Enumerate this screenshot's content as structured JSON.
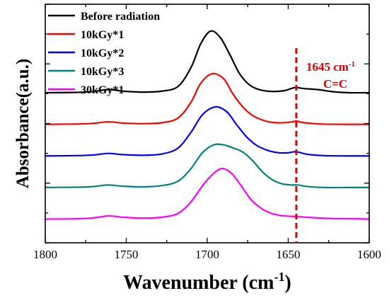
{
  "chart_data": {
    "type": "line",
    "xlabel": "Wavenumber (cm",
    "xlabel_sup": "-1",
    "xlabel_tail": ")",
    "ylabel": "Absorbance(a.u.)",
    "xlim": [
      1800,
      1600
    ],
    "x_reversed": true,
    "x_ticks": [
      1800,
      1750,
      1700,
      1650,
      1600
    ],
    "x_tick_labels": [
      "1800",
      "1750",
      "1700",
      "1650",
      "1600"
    ],
    "y_tick_labels_shown": false,
    "y_units": "a.u.",
    "grid": false,
    "legend_placement": "top-left",
    "series": [
      {
        "name": "Before radiation",
        "color": "#000000",
        "baseline": 4.0,
        "points": [
          [
            1800,
            4.0
          ],
          [
            1780,
            4.01
          ],
          [
            1770,
            4.04
          ],
          [
            1761,
            4.1
          ],
          [
            1752,
            4.05
          ],
          [
            1740,
            4.02
          ],
          [
            1728,
            4.05
          ],
          [
            1718,
            4.2
          ],
          [
            1710,
            4.8
          ],
          [
            1704,
            5.55
          ],
          [
            1698,
            5.95
          ],
          [
            1692,
            5.75
          ],
          [
            1686,
            5.2
          ],
          [
            1680,
            4.6
          ],
          [
            1674,
            4.25
          ],
          [
            1668,
            4.1
          ],
          [
            1660,
            4.04
          ],
          [
            1652,
            4.07
          ],
          [
            1646,
            4.16
          ],
          [
            1640,
            4.13
          ],
          [
            1632,
            4.1
          ],
          [
            1622,
            4.03
          ],
          [
            1612,
            4.0
          ],
          [
            1600,
            4.0
          ]
        ]
      },
      {
        "name": "10kGy*1",
        "color": "#ff0000",
        "baseline": 3.0,
        "points": [
          [
            1800,
            3.0
          ],
          [
            1780,
            3.01
          ],
          [
            1770,
            3.03
          ],
          [
            1761,
            3.08
          ],
          [
            1752,
            3.04
          ],
          [
            1740,
            3.02
          ],
          [
            1728,
            3.05
          ],
          [
            1718,
            3.2
          ],
          [
            1710,
            3.7
          ],
          [
            1704,
            4.3
          ],
          [
            1697,
            4.6
          ],
          [
            1690,
            4.45
          ],
          [
            1684,
            3.95
          ],
          [
            1678,
            3.55
          ],
          [
            1672,
            3.28
          ],
          [
            1665,
            3.12
          ],
          [
            1658,
            3.05
          ],
          [
            1650,
            3.06
          ],
          [
            1645,
            3.1
          ],
          [
            1640,
            3.05
          ],
          [
            1630,
            3.01
          ],
          [
            1615,
            3.0
          ],
          [
            1600,
            3.0
          ]
        ]
      },
      {
        "name": "10kGy*2",
        "color": "#0000ff",
        "baseline": 2.0,
        "points": [
          [
            1800,
            2.0
          ],
          [
            1780,
            2.01
          ],
          [
            1770,
            2.03
          ],
          [
            1761,
            2.08
          ],
          [
            1752,
            2.04
          ],
          [
            1740,
            2.02
          ],
          [
            1728,
            2.06
          ],
          [
            1718,
            2.25
          ],
          [
            1710,
            2.75
          ],
          [
            1703,
            3.3
          ],
          [
            1695,
            3.55
          ],
          [
            1688,
            3.4
          ],
          [
            1682,
            3.0
          ],
          [
            1676,
            2.62
          ],
          [
            1670,
            2.35
          ],
          [
            1663,
            2.18
          ],
          [
            1656,
            2.1
          ],
          [
            1650,
            2.1
          ],
          [
            1645,
            2.13
          ],
          [
            1638,
            2.05
          ],
          [
            1628,
            2.01
          ],
          [
            1612,
            2.0
          ],
          [
            1600,
            2.0
          ]
        ]
      },
      {
        "name": "10kGy*3",
        "color": "#008080",
        "baseline": 1.0,
        "points": [
          [
            1800,
            1.0
          ],
          [
            1780,
            1.01
          ],
          [
            1770,
            1.03
          ],
          [
            1761,
            1.08
          ],
          [
            1752,
            1.04
          ],
          [
            1740,
            1.02
          ],
          [
            1728,
            1.06
          ],
          [
            1718,
            1.2
          ],
          [
            1710,
            1.6
          ],
          [
            1703,
            2.1
          ],
          [
            1696,
            2.35
          ],
          [
            1690,
            2.35
          ],
          [
            1684,
            2.25
          ],
          [
            1678,
            2.12
          ],
          [
            1672,
            1.85
          ],
          [
            1666,
            1.5
          ],
          [
            1660,
            1.25
          ],
          [
            1654,
            1.12
          ],
          [
            1648,
            1.08
          ],
          [
            1644,
            1.08
          ],
          [
            1638,
            1.03
          ],
          [
            1628,
            1.0
          ],
          [
            1612,
            1.0
          ],
          [
            1600,
            1.0
          ]
        ]
      },
      {
        "name": "30kGy*1",
        "color": "#ff00ff",
        "baseline": 0.0,
        "points": [
          [
            1800,
            0.0
          ],
          [
            1780,
            0.01
          ],
          [
            1770,
            0.04
          ],
          [
            1761,
            0.1
          ],
          [
            1752,
            0.06
          ],
          [
            1740,
            0.03
          ],
          [
            1728,
            0.06
          ],
          [
            1718,
            0.18
          ],
          [
            1710,
            0.55
          ],
          [
            1703,
            1.05
          ],
          [
            1697,
            1.4
          ],
          [
            1691,
            1.6
          ],
          [
            1685,
            1.45
          ],
          [
            1679,
            1.05
          ],
          [
            1673,
            0.62
          ],
          [
            1666,
            0.32
          ],
          [
            1659,
            0.16
          ],
          [
            1652,
            0.1
          ],
          [
            1645,
            0.08
          ],
          [
            1636,
            0.05
          ],
          [
            1624,
            0.02
          ],
          [
            1610,
            0.01
          ],
          [
            1600,
            0.0
          ]
        ]
      }
    ],
    "annotation": {
      "x": 1645,
      "line_label": "1645 cm",
      "line_label_sup": "-1",
      "bond_label": "C=C",
      "color": "#e00000"
    }
  }
}
